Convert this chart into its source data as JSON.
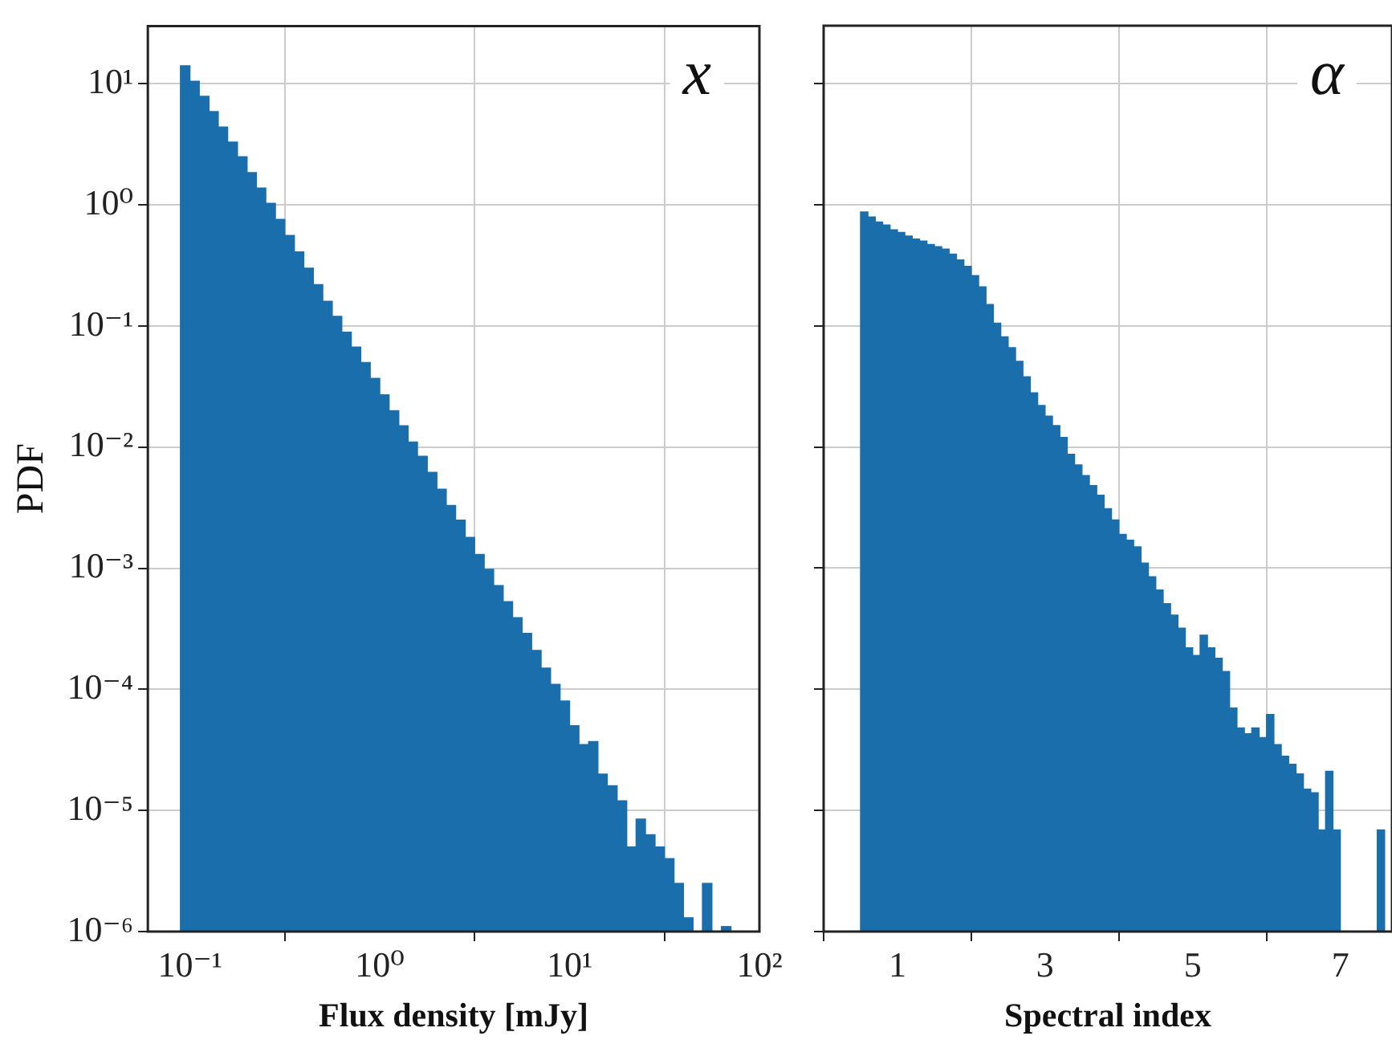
{
  "chart_data": [
    {
      "type": "histogram",
      "xlabel": "Flux density [mJy]",
      "ylabel": "PDF",
      "color": "#1a6eab",
      "log": "xy",
      "grid": true,
      "annotations": [
        "x"
      ],
      "xlim": [
        0.06,
        100
      ],
      "ylim": [
        1e-06,
        30
      ],
      "xticks": [
        {
          "value": 0.1,
          "label": "10⁻¹"
        },
        {
          "value": 1,
          "label": "10⁰"
        },
        {
          "value": 10,
          "label": "10¹"
        },
        {
          "value": 100,
          "label": "10²"
        }
      ],
      "yticks": [
        {
          "value": 1e-06,
          "label": "10⁻⁶"
        },
        {
          "value": 1e-05,
          "label": "10⁻⁵"
        },
        {
          "value": 0.0001,
          "label": "10⁻⁴"
        },
        {
          "value": 0.001,
          "label": "10⁻³"
        },
        {
          "value": 0.01,
          "label": "10⁻²"
        },
        {
          "value": 0.1,
          "label": "10⁻¹"
        },
        {
          "value": 1,
          "label": "10⁰"
        },
        {
          "value": 10,
          "label": "10¹"
        }
      ],
      "bins": [
        0.0891,
        0.1,
        0.112,
        0.126,
        0.141,
        0.158,
        0.178,
        0.2,
        0.224,
        0.251,
        0.282,
        0.316,
        0.355,
        0.398,
        0.447,
        0.501,
        0.562,
        0.631,
        0.708,
        0.794,
        0.891,
        1,
        1.12,
        1.26,
        1.41,
        1.58,
        1.78,
        2,
        2.24,
        2.51,
        2.82,
        3.16,
        3.55,
        3.98,
        4.47,
        5.01,
        5.62,
        6.31,
        7.08,
        7.94,
        8.91,
        10,
        11.2,
        12.6,
        14.1,
        15.8,
        17.8,
        20,
        22.4,
        25.1,
        28.2,
        31.6,
        35.5,
        39.8,
        44.7,
        50.1,
        56.2,
        63.1,
        70.8,
        79.4
      ],
      "values": [
        14.1,
        10.5,
        7.9,
        5.9,
        4.4,
        3.3,
        2.5,
        1.85,
        1.38,
        1.03,
        0.76,
        0.56,
        0.41,
        0.3,
        0.22,
        0.16,
        0.12,
        0.089,
        0.067,
        0.05,
        0.037,
        0.027,
        0.02,
        0.015,
        0.011,
        0.0084,
        0.0062,
        0.0045,
        0.0033,
        0.0025,
        0.0018,
        0.0013,
        0.00098,
        0.00072,
        0.00053,
        0.00039,
        0.00029,
        0.00021,
        0.00015,
        0.00011,
        8e-05,
        5e-05,
        3.5e-05,
        3.7e-05,
        2e-05,
        1.6e-05,
        1.2e-05,
        5e-06,
        8.5e-06,
        6.3e-06,
        5e-06,
        4e-06,
        2.5e-06,
        1.3e-06,
        null,
        2.5e-06,
        null,
        1.1e-06,
        null
      ]
    },
    {
      "type": "histogram",
      "xlabel": "Spectral index",
      "color": "#1a6eab",
      "log": "y",
      "grid": true,
      "tick_labels": "x",
      "annotations": [
        "α"
      ],
      "xlim": [
        0,
        7.7
      ],
      "ylim": [
        1e-06,
        30
      ],
      "xticks": [
        1,
        3,
        5,
        7
      ],
      "yticks": [
        {
          "value": 1e-06,
          "label": null
        },
        {
          "value": 1e-05,
          "label": null
        },
        {
          "value": 0.0001,
          "label": null
        },
        {
          "value": 0.001,
          "label": null
        },
        {
          "value": 0.01,
          "label": null
        },
        {
          "value": 0.1,
          "label": null
        },
        {
          "value": 1,
          "label": null
        },
        {
          "value": 10,
          "label": null
        }
      ],
      "bins": [
        0.5,
        0.6,
        0.7,
        0.8,
        0.9,
        1,
        1.1,
        1.2,
        1.3,
        1.4,
        1.5,
        1.6,
        1.7,
        1.8,
        1.9,
        2,
        2.1,
        2.2,
        2.3,
        2.4,
        2.5,
        2.6,
        2.7,
        2.8,
        2.9,
        3,
        3.1,
        3.2,
        3.3,
        3.4,
        3.5,
        3.6,
        3.7,
        3.8,
        3.9,
        4,
        4.1,
        4.2,
        4.3,
        4.4,
        4.5,
        4.6,
        4.7,
        4.8,
        4.9,
        5,
        5.1,
        5.2,
        5.3,
        5.4,
        5.5,
        5.6,
        5.7,
        5.8,
        5.9,
        6,
        6.1,
        6.2,
        6.3,
        6.4,
        6.5,
        6.6,
        6.7,
        6.8,
        6.9,
        7,
        7.1,
        7.2,
        7.3,
        7.4,
        7.5,
        7.6
      ],
      "values": [
        0.87,
        0.79,
        0.72,
        0.68,
        0.62,
        0.59,
        0.55,
        0.52,
        0.5,
        0.47,
        0.45,
        0.43,
        0.39,
        0.35,
        0.31,
        0.26,
        0.21,
        0.15,
        0.105,
        0.081,
        0.066,
        0.051,
        0.038,
        0.028,
        0.022,
        0.018,
        0.015,
        0.012,
        0.0087,
        0.0071,
        0.0058,
        0.0048,
        0.004,
        0.0031,
        0.0025,
        0.0019,
        0.0017,
        0.0015,
        0.0011,
        0.00085,
        0.00066,
        0.00051,
        0.00041,
        0.00032,
        0.00022,
        0.00019,
        0.00028,
        0.00022,
        0.00018,
        0.00014,
        7e-05,
        4.8e-05,
        4.3e-05,
        4.8e-05,
        4e-05,
        6.2e-05,
        3.5e-05,
        2.8e-05,
        2.4e-05,
        2e-05,
        1.5e-05,
        1.4e-05,
        6.9e-06,
        2.1e-05,
        6.9e-06,
        null,
        null,
        null,
        null,
        null,
        6.9e-06
      ]
    }
  ]
}
